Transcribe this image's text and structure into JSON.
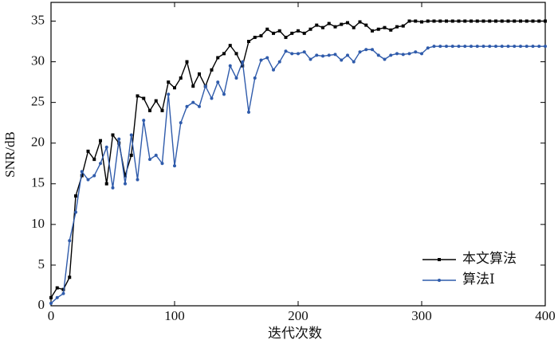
{
  "chart_data": {
    "type": "line",
    "xlabel": "迭代次数",
    "ylabel": "SNR/dB",
    "x": [
      0,
      5,
      10,
      15,
      20,
      25,
      30,
      35,
      40,
      45,
      50,
      55,
      60,
      65,
      70,
      75,
      80,
      85,
      90,
      95,
      100,
      105,
      110,
      115,
      120,
      125,
      130,
      135,
      140,
      145,
      150,
      155,
      160,
      165,
      170,
      175,
      180,
      185,
      190,
      195,
      200,
      205,
      210,
      215,
      220,
      225,
      230,
      235,
      240,
      245,
      250,
      255,
      260,
      265,
      270,
      275,
      280,
      285,
      290,
      295,
      300,
      305,
      310,
      315,
      320,
      325,
      330,
      335,
      340,
      345,
      350,
      355,
      360,
      365,
      370,
      375,
      380,
      385,
      390,
      395,
      400
    ],
    "series": [
      {
        "name": "本文算法",
        "color": "#000000",
        "marker": "square",
        "values": [
          1,
          2.2,
          2,
          3.5,
          13.5,
          16,
          19,
          18,
          20.3,
          15,
          21,
          20,
          16,
          18.5,
          25.8,
          25.5,
          24,
          25.2,
          24,
          27.5,
          26.8,
          28,
          30,
          27,
          28.5,
          27,
          29,
          30.5,
          31,
          32,
          31,
          29.5,
          32.5,
          33,
          33.2,
          34,
          33.5,
          33.8,
          33,
          33.5,
          33.8,
          33.5,
          34,
          34.5,
          34.2,
          34.7,
          34.3,
          34.6,
          34.8,
          34.2,
          34.9,
          34.5,
          33.8,
          34,
          34.2,
          33.9,
          34.3,
          34.4,
          35,
          35,
          34.9,
          35,
          35,
          35,
          35,
          35,
          35,
          35,
          35,
          35,
          35,
          35,
          35,
          35,
          35,
          35,
          35,
          35,
          35,
          35,
          35
        ]
      },
      {
        "name": "算法Ⅰ",
        "color": "#2f5bab",
        "marker": "circle",
        "values": [
          0.3,
          1,
          1.5,
          8,
          11.5,
          16.5,
          15.5,
          16,
          17.5,
          19.5,
          14.5,
          20.5,
          15,
          21,
          15.5,
          22.8,
          18,
          18.5,
          17.5,
          26,
          17.2,
          22.5,
          24.5,
          25,
          24.5,
          27,
          25.5,
          27.5,
          26,
          29.5,
          28,
          30,
          23.8,
          28,
          30.2,
          30.5,
          29,
          30,
          31.3,
          31,
          31,
          31.2,
          30.3,
          30.8,
          30.7,
          30.8,
          30.9,
          30.2,
          30.8,
          30,
          31.2,
          31.5,
          31.5,
          30.8,
          30.3,
          30.8,
          31,
          30.9,
          31,
          31.2,
          31,
          31.7,
          31.9,
          31.9,
          31.9,
          31.9,
          31.9,
          31.9,
          31.9,
          31.9,
          31.9,
          31.9,
          31.9,
          31.9,
          31.9,
          31.9,
          31.9,
          31.9,
          31.9,
          31.9,
          31.9
        ]
      }
    ],
    "xlim": [
      0,
      400
    ],
    "xticks": [
      0,
      100,
      200,
      300,
      400
    ],
    "ylim": [
      0,
      37.3
    ],
    "yticks": [
      0,
      5,
      10,
      15,
      20,
      25,
      30,
      35
    ],
    "grid": false,
    "legend": "lower right"
  }
}
